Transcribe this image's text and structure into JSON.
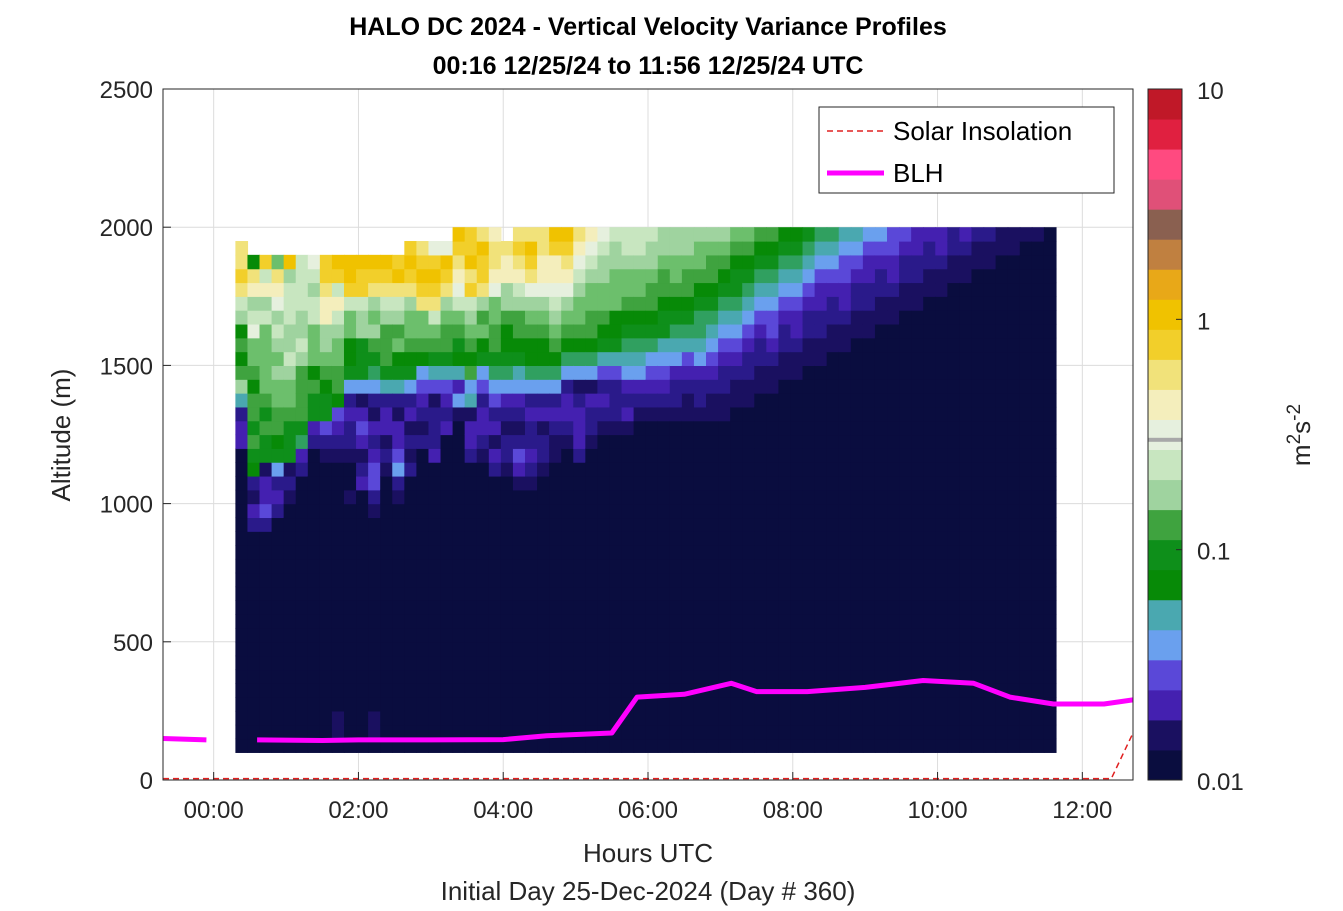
{
  "chart_data": {
    "type": "heatmap",
    "title": "HALO DC 2024 - Vertical Velocity Variance Profiles",
    "subtitle": "00:16 12/25/24 to 11:56 12/25/24  UTC",
    "xlabel": "Hours UTC",
    "xlabel2": "Initial Day 25-Dec-2024 (Day # 360)",
    "ylabel": "Altitude (m)",
    "xlim": [
      -0.7,
      12.7
    ],
    "ylim": [
      0,
      2500
    ],
    "x_ticks": [
      0,
      2,
      4,
      6,
      8,
      10,
      12
    ],
    "x_tick_labels": [
      "00:00",
      "02:00",
      "04:00",
      "06:00",
      "08:00",
      "10:00",
      "12:00"
    ],
    "y_ticks": [
      0,
      500,
      1000,
      1500,
      2000,
      2500
    ],
    "y_tick_labels": [
      "0",
      "500",
      "1000",
      "1500",
      "2000",
      "2500"
    ],
    "grid": true,
    "legend_position": "top-right",
    "legend": [
      {
        "label": "Solar Insolation",
        "color": "#e02020",
        "style": "dashed"
      },
      {
        "label": "BLH",
        "color": "#ff00ff",
        "style": "solid"
      }
    ],
    "colorbar": {
      "scale": "log",
      "range": [
        0.01,
        10
      ],
      "tick_values": [
        0.01,
        0.1,
        1,
        10
      ],
      "tick_labels": [
        "0.01",
        "0.1",
        "1",
        "10"
      ],
      "label_base": "m",
      "label_sup1": "2",
      "label_mid": "s",
      "label_sup2": "-2"
    },
    "heatmap": {
      "x_start": 0.3,
      "x_step": 0.1667,
      "y_bottom": 100,
      "y_step": 50,
      "note_levels": "each row string lists one profile from bottom (100 m) upward; letters a-s are color classes from 0.01 (a) to 1+ (s); '.' means no data",
      "classes": [
        "a",
        "b",
        "c",
        "d",
        "e",
        "f",
        "g",
        "h",
        "i",
        "j",
        "k",
        "l",
        "m",
        "n",
        "o",
        "p",
        "q",
        "r",
        "s"
      ],
      "profiles": [
        "aaaaaaaaaaaaaaaaaaaaaaddcgmkjkjmnqrqq",
        "aaaaaaaaaaaaaaaacdbcjikikkjkllonmpqj",
        "aaaaaaaaaaaaaaaaceddbiikiklllllnmpnr",
        "aaaaaaaaaaaaaaaaacdcfijkkllmlmnmopql",
        "aaaaaaaaaaaaaaaaaabcbiiikllmnmmnnnms",
        "aaaaaaaaaaaaaaaaaaaacdhikkkkmnmmnnnn",
        "aaaaaaaaaaaaaaaaaaaaaacdiikjlllnnmno",
        "aaaaaaaaaaaaaaaaaaaaabceiijklmmppqrr",
        "abbaaaaaaaaaaaaaaaaaabcdejkkllmnpnrs",
        "aaaaaaaaaaaaaaaaaabaabccdcfijjllnrss",
        "aaaaaaaaaaaaaaaaaaadcbdedbfiiimmnrrs",
        "abbaaaaaaaaaaaaaabceedcdbcfhikmlmqrs",
        "aaaaaaaaaaaaaaaaaaaabcbddcgikkkmnqrs",
        "aaaaaaaaaaaaaaaaaabcfeddbcgijlkmnqsr",
        "aaaaaaaaaaaaaaaaaaaacbcbdcfijkllmqrsr",
        "aaaaaaaaaaaaaaaaaaaaaacbcdefjkllqrsrq",
        "aaaaaaaaaaaaaaaaaaaaadcccbegiklnqrsro",
        "aaaaaaaaaaaaaaaaaaaaaaadcdegikklmqrso",
        "aaaaaaaaaaaaaaaaaaaaaaaabfdgjiklnopqrs",
        "aaaaaaaaaaaaaaaaaaaaacddbgfkjklmnrqsrr",
        "aaaaaaaaaaaaaaaaaaaaabcddcefijlkmqrrsq",
        "aaaaaaaaaaaaaaaaaaaacdbdcefhikkllopqqp",
        "aaaaaaaaaaaaaaaaaaaabccbcdfhijjkmmppq.",
        "aaaaaaaaaaaaaaaaaaabdecbcdfgijkkmnpqrq",
        "aaaaaaaaaaaaaaaaaaabcdccdcfhjjklmoqrsq",
        "aaaaaaaaaaaaaaaaaaaabccbdcfhjjklmoppqq",
        "aaaaaaaaaaaaaaaaaaaaabbcdcfhjklmnopprs",
        "aaaaaaaaaaaaaaaaaaaaaabcddcfhjklmopqrs",
        "aaaaaaaaaaaaaaaaaaaaacdddcbfhjkllmnopq",
        "aaaaaaaaaaaaaaaaaaaaaabccdbfhjkkllmnop",
        "aaaaaaaaaaaaaaaaaaaaaaabcdcegijkllmmno",
        "aaaaaaaaaaaaaaaaaaaaaaabcccegijjlllmmn",
        "aaaaaaaaaaaaaaaaaaaaaaabdcdfghijkllmnn",
        "aaaaaaaaaaaaaaaaaaaaaaaabcdfghijkllmnn",
        "aaaaaaaaaaaaaaaaaaaaaaaabcdefhijkklmmn",
        "aaaaaaaaaaaaaaaaaaaaaaaabcdefgiijkklmm",
        "aaaaaaaaaaaaaaaaaaaaaaaabccdfghijkllmm",
        "aaaaaaaaaaaaaaaaaaaaaaaabbcdeghijkklmm",
        "aaaaaaaaaaaaaaaaaaaaaaaabccdfghhijkllm",
        "aaaaaaaaaaaaaaaaaaaaaaaabbcdefghijkklm",
        "aaaaaaaaaaaaaaaaaaaaaaaabbccdefghijklm",
        "aaaaaaaaaaaaaaaaaaaaaaaaabbcdefghiijkl",
        "aaaaaaaaaaaaaaaaaaaaaaaaabbccdefghijkl",
        "aaaaaaaaaaaaaaaaaaaaaaaaaabbccdefghijk",
        "aaaaaaaaaaaaaaaaaaaaaaaaaabbcdeefghijk",
        "aaaaaaaaaaaaaaaaaaaaaaaaaaabbccdefghij",
        "aaaaaaaaaaaaaaaaaaaaaaaaaaabbcddefghij",
        "aaaaaaaaaaaaaaaaaaaaaaaaaaaabbccdefghi",
        "aaaaaaaaaaaaaaaaaaaaaaaaaaaabbccddefgh",
        "aaaaaaaaaaaaaaaaaaaaaaaaaaaaabbccdefgh",
        "aaaaaaaaaaaaaaaaaaaaaaaaaaaaabbcddeefg",
        "aaaaaaaaaaaaaaaaaaaaaaaaaaaaaabbccdefg",
        "aaaaaaaaaaaaaaaaaaaaaaaaaaaaaabbccddef",
        "aaaaaaaaaaaaaaaaaaaaaaaaaaaaaaabbccdef",
        "aaaaaaaaaaaaaaaaaaaaaaaaaaaaaaabbcddee",
        "aaaaaaaaaaaaaaaaaaaaaaaaaaaaaaaabbccde",
        "aaaaaaaaaaaaaaaaaaaaaaaaaaaaaaaabbccdd",
        "aaaaaaaaaaaaaaaaaaaaaaaaaaaaaaaaabbccd",
        "aaaaaaaaaaaaaaaaaaaaaaaaaaaaaaaaabbcdd",
        "aaaaaaaaaaaaaaaaaaaaaaaaaaaaaaaaaabbcc",
        "aaaaaaaaaaaaaaaaaaaaaaaaaaaaaaaaaabbcd",
        "aaaaaaaaaaaaaaaaaaaaaaaaaaaaaaaaaaabbc",
        "aaaaaaaaaaaaaaaaaaaaaaaaaaaaaaaaaaabbc",
        "aaaaaaaaaaaaaaaaaaaaaaaaaaaaaaaaaaaabb",
        "aaaaaaaaaaaaaaaaaaaaaaaaaaaaaaaaaaaabb",
        "aaaaaaaaaaaaaaaaaaaaaaaaaaaaaaaaaaaaab",
        "aaaaaaaaaaaaaaaaaaaaaaaaaaaaaaaaaaaaab",
        "aaaaaaaaaaaaaaaaaaaaaaaaaaaaaaaaaaaaaa"
      ]
    },
    "blh": {
      "x": [
        -0.7,
        -0.1,
        0.6,
        1.5,
        2.0,
        3.0,
        4.0,
        4.6,
        5.5,
        5.85,
        6.5,
        7.15,
        7.5,
        8.2,
        9.0,
        9.8,
        10.5,
        11.0,
        11.6,
        12.3,
        12.7
      ],
      "y": [
        150,
        145,
        145,
        143,
        145,
        145,
        146,
        160,
        170,
        300,
        310,
        350,
        320,
        320,
        335,
        360,
        350,
        300,
        275,
        275,
        290
      ],
      "gap": [
        -0.1,
        0.6
      ]
    },
    "solar": {
      "x": [
        -0.7,
        12.4,
        12.7
      ],
      "y": [
        5,
        5,
        170
      ]
    }
  }
}
